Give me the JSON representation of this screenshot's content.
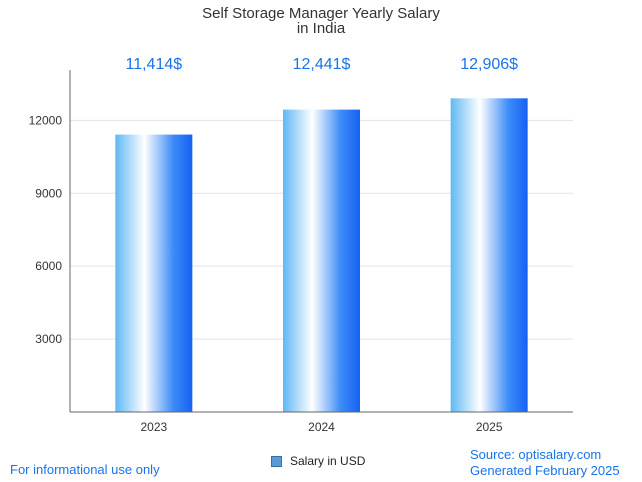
{
  "chart_data": {
    "type": "bar",
    "title": "Self Storage Manager Yearly Salary",
    "subtitle": "in India",
    "categories": [
      "2023",
      "2024",
      "2025"
    ],
    "series": [
      {
        "name": "Salary in USD",
        "values": [
          11414,
          12441,
          12906
        ]
      }
    ],
    "value_labels": [
      "11,414$",
      "12,441$",
      "12,906$"
    ],
    "ylim": [
      0,
      14400
    ],
    "yticks": [
      3000,
      6000,
      9000,
      12000
    ],
    "grid": true,
    "legend_position": "bottom-center",
    "colors": {
      "bar_dark": "#1a6ef5",
      "bar_light": "#ffffff",
      "label": "#1a73e8"
    }
  },
  "footer": {
    "disclaimer": "For informational use only",
    "source": "Source: optisalary.com",
    "generated": "Generated February 2025"
  }
}
